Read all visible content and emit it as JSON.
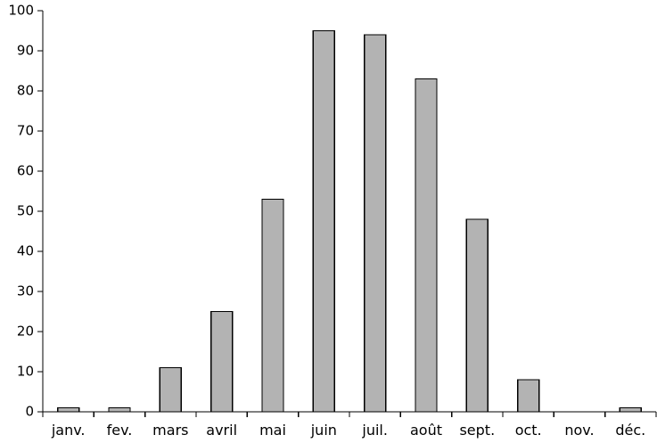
{
  "chart_data": {
    "type": "bar",
    "title": "",
    "xlabel": "",
    "ylabel": "",
    "categories": [
      "janv.",
      "fev.",
      "mars",
      "avril",
      "mai",
      "juin",
      "juil.",
      "août",
      "sept.",
      "oct.",
      "nov.",
      "déc."
    ],
    "values": [
      1,
      1,
      11,
      25,
      53,
      95,
      94,
      83,
      48,
      8,
      0,
      1
    ],
    "ylim": [
      0,
      100
    ],
    "yticks": [
      0,
      10,
      20,
      30,
      40,
      50,
      60,
      70,
      80,
      90,
      100
    ],
    "grid": false,
    "legend": "none",
    "bar_color": "#b3b3b3",
    "bar_border_color": "#000000"
  }
}
